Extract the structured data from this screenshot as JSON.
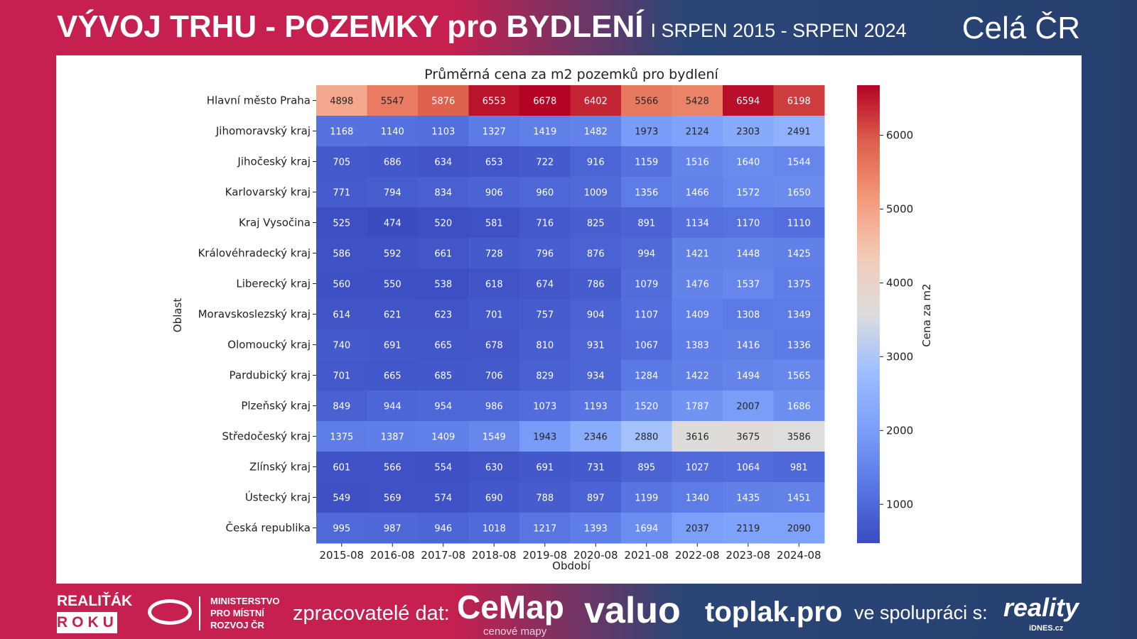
{
  "header": {
    "title": "VÝVOJ TRHU - POZEMKY pro BYDLENÍ",
    "subtitle": "I SRPEN 2015 - SRPEN 2024",
    "region": "Celá ČR"
  },
  "footer": {
    "award_top": "REALIŤÁK",
    "award_bottom": "ROKU",
    "ministry": [
      "MINISTERSTVO",
      "PRO MÍSTNÍ",
      "ROZVOJ ČR"
    ],
    "processors_label": "zpracovatelé dat:",
    "cemap": "CeMap",
    "cemap_sub": "cenové mapy",
    "valuo": "valuo",
    "toplak": "toplak.pro",
    "cooperation_label": "ve spolupráci s:",
    "reality": "reality",
    "reality_sub": "iDNES.cz"
  },
  "chart_data": {
    "type": "heatmap",
    "title": "Průměrná cena za m2 pozemků pro bydlení",
    "xlabel": "Období",
    "ylabel": "Oblast",
    "colorbar_label": "Cena za m2",
    "colormap": "coolwarm",
    "vmin": 474,
    "vmax": 6678,
    "colorbar_ticks": [
      1000,
      2000,
      3000,
      4000,
      5000,
      6000
    ],
    "x": [
      "2015-08",
      "2016-08",
      "2017-08",
      "2018-08",
      "2019-08",
      "2020-08",
      "2021-08",
      "2022-08",
      "2023-08",
      "2024-08"
    ],
    "y": [
      "Hlavní město Praha",
      "Jihomoravský kraj",
      "Jihočeský kraj",
      "Karlovarský kraj",
      "Kraj Vysočina",
      "Královéhradecký kraj",
      "Liberecký kraj",
      "Moravskoslezský kraj",
      "Olomoucký kraj",
      "Pardubický kraj",
      "Plzeňský kraj",
      "Středočeský kraj",
      "Zlínský kraj",
      "Ústecký kraj",
      "Česká republika"
    ],
    "values": [
      [
        4898,
        5547,
        5876,
        6553,
        6678,
        6402,
        5566,
        5428,
        6594,
        6198
      ],
      [
        1168,
        1140,
        1103,
        1327,
        1419,
        1482,
        1973,
        2124,
        2303,
        2491
      ],
      [
        705,
        686,
        634,
        653,
        722,
        916,
        1159,
        1516,
        1640,
        1544
      ],
      [
        771,
        794,
        834,
        906,
        960,
        1009,
        1356,
        1466,
        1572,
        1650
      ],
      [
        525,
        474,
        520,
        581,
        716,
        825,
        891,
        1134,
        1170,
        1110
      ],
      [
        586,
        592,
        661,
        728,
        796,
        876,
        994,
        1421,
        1448,
        1425
      ],
      [
        560,
        550,
        538,
        618,
        674,
        786,
        1079,
        1476,
        1537,
        1375
      ],
      [
        614,
        621,
        623,
        701,
        757,
        904,
        1107,
        1409,
        1308,
        1349
      ],
      [
        740,
        691,
        665,
        678,
        810,
        931,
        1067,
        1383,
        1416,
        1336
      ],
      [
        701,
        665,
        685,
        706,
        829,
        934,
        1284,
        1422,
        1494,
        1565
      ],
      [
        849,
        944,
        954,
        986,
        1073,
        1193,
        1520,
        1787,
        2007,
        1686
      ],
      [
        1375,
        1387,
        1409,
        1549,
        1943,
        2346,
        2880,
        3616,
        3675,
        3586
      ],
      [
        601,
        566,
        554,
        630,
        691,
        731,
        895,
        1027,
        1064,
        981
      ],
      [
        549,
        569,
        574,
        690,
        788,
        897,
        1199,
        1340,
        1435,
        1451
      ],
      [
        995,
        987,
        946,
        1018,
        1217,
        1393,
        1694,
        2037,
        2119,
        2090
      ]
    ]
  }
}
